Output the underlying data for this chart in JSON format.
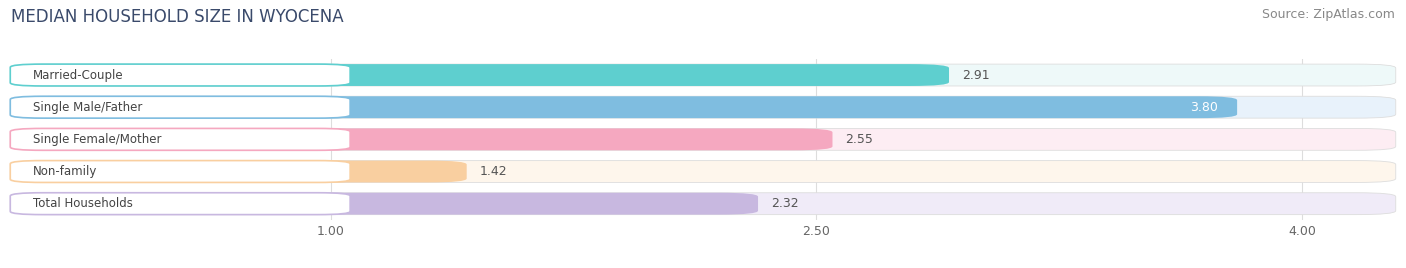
{
  "title": "MEDIAN HOUSEHOLD SIZE IN WYOCENA",
  "source": "Source: ZipAtlas.com",
  "categories": [
    "Married-Couple",
    "Single Male/Father",
    "Single Female/Mother",
    "Non-family",
    "Total Households"
  ],
  "values": [
    2.91,
    3.8,
    2.55,
    1.42,
    2.32
  ],
  "bar_colors": [
    "#5ECFCF",
    "#7FBDE0",
    "#F5A8C0",
    "#F9CFA0",
    "#C8B8E0"
  ],
  "bg_colors": [
    "#EEF9F9",
    "#E8F2FB",
    "#FDEDF3",
    "#FEF6EC",
    "#F0EBF8"
  ],
  "border_colors": [
    "#5ECFCF",
    "#7FBDE0",
    "#F5A8C0",
    "#F9CFA0",
    "#C8B8E0"
  ],
  "xlim": [
    0.0,
    4.3
  ],
  "xstart": 0.0,
  "xend": 4.3,
  "xticks": [
    1.0,
    2.5,
    4.0
  ],
  "xticklabels": [
    "1.00",
    "2.50",
    "4.00"
  ],
  "label_inside_threshold": 3.5,
  "title_fontsize": 12,
  "source_fontsize": 9,
  "bar_label_fontsize": 9,
  "category_fontsize": 8.5,
  "bg_color": "#FFFFFF",
  "grid_color": "#DDDDDD",
  "bar_height": 0.68,
  "bar_gap": 0.12
}
